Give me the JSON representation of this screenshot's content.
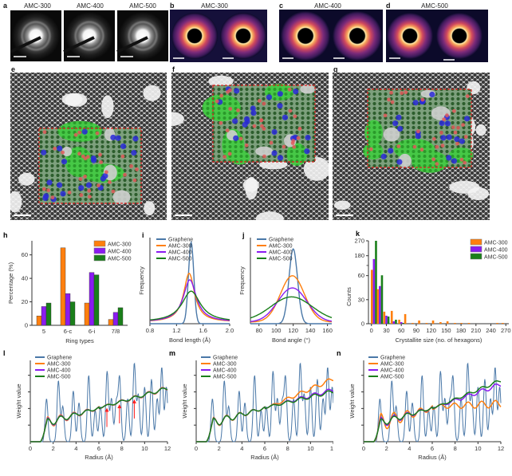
{
  "colors": {
    "graphene": "#4a78a8",
    "amc300": "#ff7f0e",
    "amc400": "#8a1cf0",
    "amc500": "#1a7f1a",
    "roi_box": "#e02020",
    "arrow": "#ff2020"
  },
  "panels_top": {
    "a": {
      "label": "a",
      "titles": [
        "AMC-300",
        "AMC-400",
        "AMC-500"
      ]
    },
    "b": {
      "label": "b",
      "title": "AMC-300"
    },
    "c": {
      "label": "c",
      "title": "AMC-400"
    },
    "d": {
      "label": "d",
      "title": "AMC-500"
    }
  },
  "panels_mid": {
    "e": {
      "label": "e"
    },
    "f": {
      "label": "f"
    },
    "g": {
      "label": "g"
    }
  },
  "chart_data": [
    {
      "id": "h",
      "label": "h",
      "type": "bar",
      "title": "",
      "xlabel": "Ring types",
      "ylabel": "Percentage (%)",
      "categories": [
        "5",
        "6-c",
        "6-i",
        "7/8"
      ],
      "ylim": [
        0,
        72
      ],
      "yticks": [
        0,
        20,
        40,
        60
      ],
      "legend_position": "top-right",
      "series": [
        {
          "name": "AMC-300",
          "values": [
            8,
            66,
            19,
            5
          ]
        },
        {
          "name": "AMC-400",
          "values": [
            16,
            27,
            45,
            11
          ]
        },
        {
          "name": "AMC-500",
          "values": [
            19,
            20,
            43,
            15
          ]
        }
      ]
    },
    {
      "id": "i",
      "label": "i",
      "type": "line",
      "xlabel": "Bond length (Å)",
      "ylabel": "Frequency",
      "xlim": [
        0.8,
        2.0
      ],
      "xticks": [
        0.8,
        1.2,
        1.6,
        2.0
      ],
      "xtick_labels": [
        "0.8",
        "1.2",
        "1.6",
        "2.0"
      ],
      "legend_position": "top-left",
      "series": [
        {
          "name": "Graphene",
          "shape": "gaussian",
          "center": 1.42,
          "width": 0.04,
          "peak": 1.0,
          "tail": 0
        },
        {
          "name": "AMC-300",
          "shape": "lorentzian",
          "center": 1.39,
          "width": 0.1,
          "peak": 0.6,
          "tail": 0.02
        },
        {
          "name": "AMC-400",
          "shape": "lorentzian",
          "center": 1.4,
          "width": 0.12,
          "peak": 0.52,
          "tail": 0.02
        },
        {
          "name": "AMC-500",
          "shape": "lorentzian",
          "center": 1.42,
          "width": 0.17,
          "peak": 0.38,
          "tail": 0.02
        }
      ]
    },
    {
      "id": "j",
      "label": "j",
      "type": "line",
      "xlabel": "Bond angle (°)",
      "ylabel": "Frequency",
      "xlim": [
        70,
        165
      ],
      "xticks": [
        80,
        100,
        120,
        140,
        160
      ],
      "xtick_labels": [
        "80",
        "100",
        "120",
        "140",
        "160"
      ],
      "legend_position": "top-left",
      "series": [
        {
          "name": "Graphene",
          "shape": "gaussian",
          "center": 120,
          "width": 5,
          "peak": 0.92,
          "tail": 0
        },
        {
          "name": "AMC-300",
          "shape": "gaussian",
          "center": 119,
          "width": 14,
          "peak": 0.57,
          "tail": 0.02
        },
        {
          "name": "AMC-400",
          "shape": "gaussian",
          "center": 119,
          "width": 17,
          "peak": 0.42,
          "tail": 0.02
        },
        {
          "name": "AMC-500",
          "shape": "gaussian",
          "center": 118,
          "width": 24,
          "peak": 0.3,
          "tail": 0.03
        }
      ]
    },
    {
      "id": "k",
      "label": "k",
      "type": "bar",
      "xlabel": "Crystallite size (no. of hexagons)",
      "ylabel": "Counts",
      "xlim": [
        -6,
        276
      ],
      "xticks": [
        0,
        30,
        60,
        90,
        120,
        150,
        180,
        210,
        240,
        270
      ],
      "yticks": [
        0,
        30,
        60,
        180,
        270
      ],
      "ytick_labels": [
        "0",
        "30",
        "60",
        "180",
        "270"
      ],
      "axis_break": "between 60 and 180",
      "legend_position": "top-right",
      "bins": [
        5,
        17,
        30,
        45,
        60,
        72,
        87,
        100,
        115,
        128,
        143,
        157,
        172,
        185,
        200,
        257,
        268
      ],
      "series": [
        {
          "name": "AMC-300",
          "values": [
            95,
            43,
            15,
            16,
            5,
            12,
            1,
            4,
            1,
            4,
            2,
            3,
            1,
            1,
            1,
            1,
            1
          ]
        },
        {
          "name": "AMC-400",
          "values": [
            160,
            47,
            10,
            3,
            2,
            0,
            0,
            0,
            0,
            0,
            0,
            0,
            0,
            0,
            0,
            0,
            0
          ]
        },
        {
          "name": "AMC-500",
          "values": [
            270,
            62,
            9,
            5,
            1,
            0,
            0,
            0,
            0,
            0,
            0,
            0,
            0,
            0,
            0,
            0,
            0
          ]
        }
      ]
    },
    {
      "id": "l",
      "label": "l",
      "type": "line",
      "xlabel": "Radius (Å)",
      "ylabel": "Weight value",
      "xlim": [
        0,
        12
      ],
      "xticks": [
        0,
        2,
        4,
        6,
        8,
        10,
        12
      ],
      "legend_position": "top-left",
      "annotations": [
        "red arrows at radius ≈ 6.7, 7.8, 9.1 Å"
      ],
      "arrows_x": [
        6.7,
        7.8,
        9.1
      ],
      "series": [
        {
          "name": "Graphene",
          "kind": "graphene"
        },
        {
          "name": "AMC-300",
          "kind": "amc",
          "amp": 1.2,
          "drift": 0
        },
        {
          "name": "AMC-400",
          "kind": "amc",
          "amp": 1.0,
          "drift": 0
        },
        {
          "name": "AMC-500",
          "kind": "amc",
          "amp": 0.85,
          "drift": 0
        }
      ]
    },
    {
      "id": "m",
      "label": "m",
      "type": "line",
      "xlabel": "Radius (Å)",
      "ylabel": "Weight value",
      "xlim": [
        0,
        12
      ],
      "xticks": [
        0,
        2,
        4,
        6,
        8,
        10,
        12
      ],
      "legend_position": "top-left",
      "series": [
        {
          "name": "Graphene",
          "kind": "graphene"
        },
        {
          "name": "AMC-300",
          "kind": "amc",
          "amp": 1.1,
          "drift": 0.12
        },
        {
          "name": "AMC-400",
          "kind": "amc",
          "amp": 1.0,
          "drift": -0.02
        },
        {
          "name": "AMC-500",
          "kind": "amc",
          "amp": 0.95,
          "drift": -0.04
        }
      ]
    },
    {
      "id": "n",
      "label": "n",
      "type": "line",
      "xlabel": "Radius (Å)",
      "ylabel": "Weight value",
      "xlim": [
        0,
        12
      ],
      "xticks": [
        0,
        2,
        4,
        6,
        8,
        10,
        12
      ],
      "legend_position": "top-left",
      "series": [
        {
          "name": "Graphene",
          "kind": "graphene"
        },
        {
          "name": "AMC-300",
          "kind": "amc",
          "amp": 1.9,
          "drift": -0.2
        },
        {
          "name": "AMC-400",
          "kind": "amc",
          "amp": 1.1,
          "drift": 0.05
        },
        {
          "name": "AMC-500",
          "kind": "amc",
          "amp": 0.8,
          "drift": 0.1
        }
      ]
    }
  ]
}
